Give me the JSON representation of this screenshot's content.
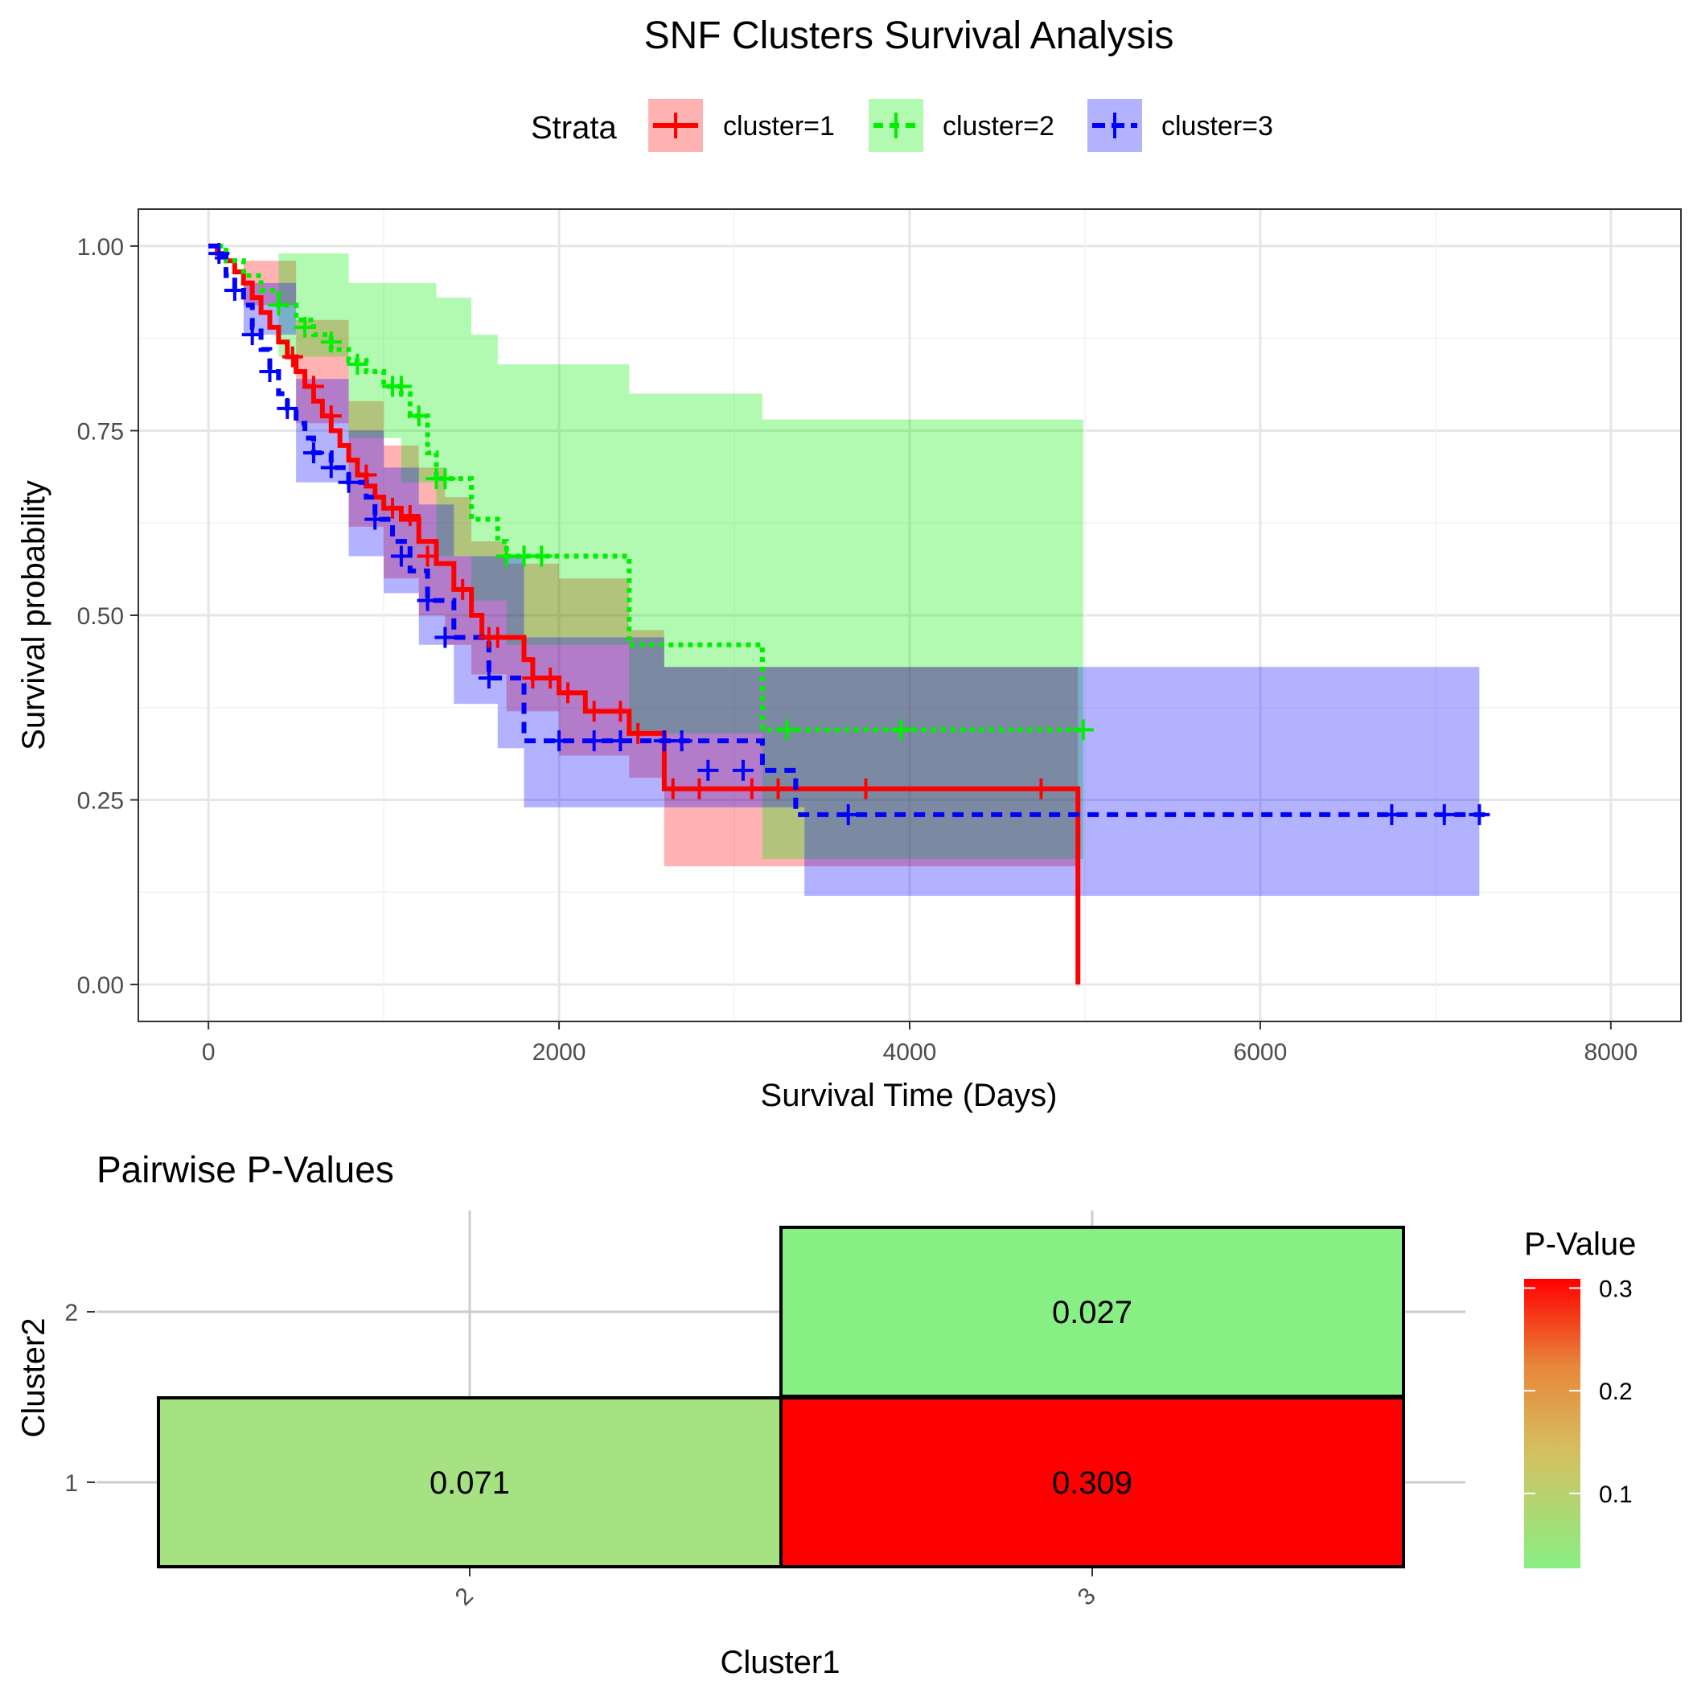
{
  "chart_data": [
    {
      "type": "line",
      "subtype": "kaplan-meier",
      "title": "SNF Clusters Survival Analysis",
      "xlabel": "Survival Time (Days)",
      "ylabel": "Survival probability",
      "xlim": [
        -400,
        8400
      ],
      "ylim": [
        -0.05,
        1.05
      ],
      "xticks": [
        0,
        2000,
        4000,
        6000,
        8000
      ],
      "xtick_labels": [
        "0",
        "2000",
        "4000",
        "6000",
        "8000"
      ],
      "yticks": [
        0,
        0.25,
        0.5,
        0.75,
        1
      ],
      "ytick_labels": [
        "0.00",
        "0.25",
        "0.50",
        "0.75",
        "1.00"
      ],
      "grid": true,
      "legend": {
        "title": "Strata",
        "position": "top",
        "entries": [
          "cluster=1",
          "cluster=2",
          "cluster=3"
        ]
      },
      "series": [
        {
          "name": "cluster=1",
          "color": "#ff0000",
          "dash": "solid",
          "steps": [
            [
              0,
              1
            ],
            [
              50,
              0.99
            ],
            [
              100,
              0.98
            ],
            [
              150,
              0.965
            ],
            [
              200,
              0.95
            ],
            [
              250,
              0.93
            ],
            [
              300,
              0.91
            ],
            [
              350,
              0.89
            ],
            [
              400,
              0.87
            ],
            [
              450,
              0.85
            ],
            [
              500,
              0.83
            ],
            [
              550,
              0.81
            ],
            [
              600,
              0.79
            ],
            [
              650,
              0.77
            ],
            [
              700,
              0.75
            ],
            [
              750,
              0.73
            ],
            [
              800,
              0.71
            ],
            [
              850,
              0.69
            ],
            [
              900,
              0.675
            ],
            [
              950,
              0.66
            ],
            [
              1000,
              0.645
            ],
            [
              1100,
              0.63
            ],
            [
              1200,
              0.6
            ],
            [
              1300,
              0.57
            ],
            [
              1400,
              0.535
            ],
            [
              1500,
              0.5
            ],
            [
              1560,
              0.47
            ],
            [
              1800,
              0.44
            ],
            [
              1850,
              0.415
            ],
            [
              2000,
              0.395
            ],
            [
              2150,
              0.37
            ],
            [
              2400,
              0.34
            ],
            [
              2600,
              0.265
            ],
            [
              4960,
              0.265
            ],
            [
              4960,
              0
            ]
          ],
          "censors": [
            [
              480,
              0.85
            ],
            [
              600,
              0.81
            ],
            [
              700,
              0.77
            ],
            [
              900,
              0.69
            ],
            [
              1050,
              0.645
            ],
            [
              1150,
              0.635
            ],
            [
              1250,
              0.58
            ],
            [
              1450,
              0.535
            ],
            [
              1600,
              0.47
            ],
            [
              1650,
              0.47
            ],
            [
              1850,
              0.415
            ],
            [
              1950,
              0.415
            ],
            [
              2050,
              0.395
            ],
            [
              2200,
              0.37
            ],
            [
              2350,
              0.37
            ],
            [
              2450,
              0.34
            ],
            [
              2650,
              0.265
            ],
            [
              2800,
              0.265
            ],
            [
              3100,
              0.265
            ],
            [
              3250,
              0.265
            ],
            [
              3750,
              0.265
            ],
            [
              4750,
              0.265
            ]
          ],
          "ci_upper": [
            [
              0,
              1
            ],
            [
              200,
              0.98
            ],
            [
              500,
              0.9
            ],
            [
              800,
              0.79
            ],
            [
              1000,
              0.73
            ],
            [
              1200,
              0.7
            ],
            [
              1350,
              0.66
            ],
            [
              1500,
              0.6
            ],
            [
              1700,
              0.57
            ],
            [
              2000,
              0.55
            ],
            [
              2400,
              0.48
            ],
            [
              2600,
              0.43
            ],
            [
              3400,
              0.43
            ],
            [
              4960,
              0.43
            ]
          ],
          "ci_lower": [
            [
              0,
              1
            ],
            [
              200,
              0.92
            ],
            [
              500,
              0.76
            ],
            [
              800,
              0.62
            ],
            [
              1000,
              0.55
            ],
            [
              1200,
              0.5
            ],
            [
              1350,
              0.46
            ],
            [
              1500,
              0.42
            ],
            [
              1700,
              0.37
            ],
            [
              2000,
              0.31
            ],
            [
              2400,
              0.28
            ],
            [
              2600,
              0.16
            ],
            [
              4960,
              0.16
            ]
          ]
        },
        {
          "name": "cluster=2",
          "color": "#00ee00",
          "dash": "6,6",
          "steps": [
            [
              0,
              1
            ],
            [
              100,
              0.98
            ],
            [
              200,
              0.96
            ],
            [
              300,
              0.94
            ],
            [
              400,
              0.92
            ],
            [
              500,
              0.9
            ],
            [
              600,
              0.88
            ],
            [
              700,
              0.86
            ],
            [
              800,
              0.845
            ],
            [
              900,
              0.83
            ],
            [
              1000,
              0.81
            ],
            [
              1100,
              0.8
            ],
            [
              1150,
              0.77
            ],
            [
              1250,
              0.72
            ],
            [
              1300,
              0.685
            ],
            [
              1500,
              0.63
            ],
            [
              1650,
              0.6
            ],
            [
              1700,
              0.58
            ],
            [
              2400,
              0.46
            ],
            [
              3160,
              0.345
            ],
            [
              4990,
              0.345
            ]
          ],
          "censors": [
            [
              400,
              0.92
            ],
            [
              550,
              0.89
            ],
            [
              700,
              0.87
            ],
            [
              850,
              0.84
            ],
            [
              1050,
              0.81
            ],
            [
              1100,
              0.81
            ],
            [
              1200,
              0.77
            ],
            [
              1300,
              0.685
            ],
            [
              1350,
              0.685
            ],
            [
              1700,
              0.58
            ],
            [
              1800,
              0.58
            ],
            [
              1900,
              0.58
            ],
            [
              3300,
              0.345
            ],
            [
              3950,
              0.345
            ],
            [
              4990,
              0.345
            ]
          ],
          "ci_upper": [
            [
              0,
              1
            ],
            [
              400,
              0.99
            ],
            [
              800,
              0.95
            ],
            [
              1300,
              0.93
            ],
            [
              1500,
              0.88
            ],
            [
              1650,
              0.84
            ],
            [
              2400,
              0.8
            ],
            [
              3160,
              0.765
            ],
            [
              4990,
              0.765
            ]
          ],
          "ci_lower": [
            [
              0,
              1
            ],
            [
              400,
              0.85
            ],
            [
              800,
              0.74
            ],
            [
              1100,
              0.68
            ],
            [
              1300,
              0.58
            ],
            [
              1500,
              0.52
            ],
            [
              1700,
              0.46
            ],
            [
              2400,
              0.34
            ],
            [
              3160,
              0.17
            ],
            [
              4990,
              0.17
            ]
          ]
        },
        {
          "name": "cluster=3",
          "color": "#0000ff",
          "dash": "14,10",
          "steps": [
            [
              0,
              1
            ],
            [
              50,
              0.985
            ],
            [
              100,
              0.96
            ],
            [
              150,
              0.94
            ],
            [
              200,
              0.92
            ],
            [
              250,
              0.89
            ],
            [
              300,
              0.86
            ],
            [
              350,
              0.83
            ],
            [
              400,
              0.8
            ],
            [
              450,
              0.78
            ],
            [
              500,
              0.76
            ],
            [
              550,
              0.74
            ],
            [
              600,
              0.72
            ],
            [
              700,
              0.7
            ],
            [
              800,
              0.68
            ],
            [
              900,
              0.66
            ],
            [
              950,
              0.63
            ],
            [
              1050,
              0.6
            ],
            [
              1150,
              0.56
            ],
            [
              1250,
              0.52
            ],
            [
              1400,
              0.47
            ],
            [
              1600,
              0.415
            ],
            [
              1800,
              0.33
            ],
            [
              3160,
              0.29
            ],
            [
              3350,
              0.23
            ],
            [
              7300,
              0.23
            ]
          ],
          "censors": [
            [
              60,
              0.99
            ],
            [
              150,
              0.94
            ],
            [
              250,
              0.88
            ],
            [
              350,
              0.83
            ],
            [
              450,
              0.78
            ],
            [
              600,
              0.72
            ],
            [
              700,
              0.7
            ],
            [
              800,
              0.68
            ],
            [
              950,
              0.63
            ],
            [
              1100,
              0.58
            ],
            [
              1250,
              0.52
            ],
            [
              1350,
              0.47
            ],
            [
              1600,
              0.415
            ],
            [
              2000,
              0.33
            ],
            [
              2200,
              0.33
            ],
            [
              2350,
              0.33
            ],
            [
              2600,
              0.33
            ],
            [
              2700,
              0.33
            ],
            [
              2850,
              0.29
            ],
            [
              3050,
              0.29
            ],
            [
              3650,
              0.23
            ],
            [
              6750,
              0.23
            ],
            [
              7050,
              0.23
            ],
            [
              7250,
              0.23
            ]
          ],
          "ci_upper": [
            [
              0,
              1
            ],
            [
              200,
              0.95
            ],
            [
              500,
              0.82
            ],
            [
              800,
              0.75
            ],
            [
              1000,
              0.7
            ],
            [
              1200,
              0.65
            ],
            [
              1400,
              0.58
            ],
            [
              1800,
              0.47
            ],
            [
              2600,
              0.43
            ],
            [
              3400,
              0.43
            ],
            [
              7250,
              0.43
            ]
          ],
          "ci_lower": [
            [
              0,
              1
            ],
            [
              200,
              0.88
            ],
            [
              500,
              0.68
            ],
            [
              800,
              0.58
            ],
            [
              1000,
              0.53
            ],
            [
              1200,
              0.46
            ],
            [
              1400,
              0.38
            ],
            [
              1650,
              0.32
            ],
            [
              1800,
              0.24
            ],
            [
              3400,
              0.12
            ],
            [
              7250,
              0.12
            ]
          ]
        }
      ]
    },
    {
      "type": "heatmap",
      "title": "Pairwise P-Values",
      "xlabel": "Cluster1",
      "ylabel": "Cluster2",
      "x_categories": [
        "2",
        "3"
      ],
      "y_categories": [
        "1",
        "2"
      ],
      "cells": [
        {
          "x": "2",
          "y": "1",
          "value": 0.071,
          "label": "0.071",
          "fill": "#a6e182"
        },
        {
          "x": "3",
          "y": "1",
          "value": 0.309,
          "label": "0.309",
          "fill": "#ff0000"
        },
        {
          "x": "3",
          "y": "2",
          "value": 0.027,
          "label": "0.027",
          "fill": "#88ef84"
        }
      ],
      "legend": {
        "title": "P-Value",
        "min": 0.027,
        "max": 0.309,
        "ticks": [
          0.1,
          0.2,
          0.3
        ],
        "tick_labels": [
          "0.1",
          "0.2",
          "0.3"
        ],
        "colors": [
          "#88ef84",
          "#d4c060",
          "#e8863a",
          "#ff0000"
        ]
      }
    }
  ]
}
